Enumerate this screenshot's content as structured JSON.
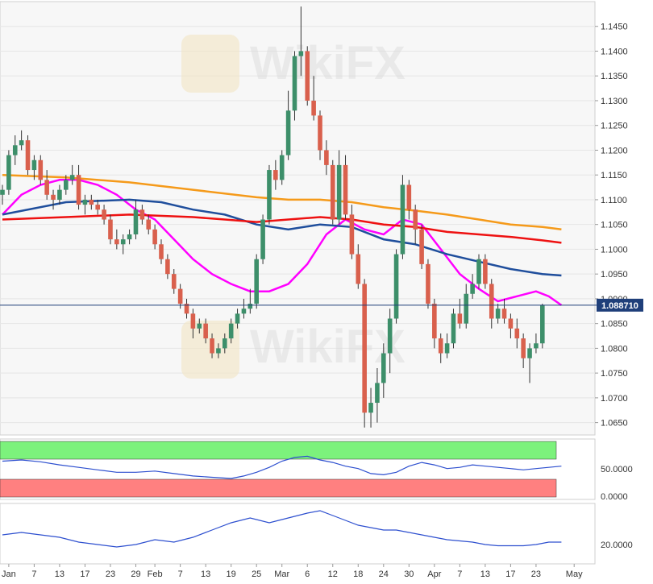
{
  "chart_data": {
    "type": "candlestick",
    "instrument": "EUR/USD",
    "timeframe": "daily",
    "last_price": "1.088710",
    "ylim": [
      1.0625,
      1.15
    ],
    "y_ticks": [
      "1.1450",
      "1.1400",
      "1.1350",
      "1.1300",
      "1.1250",
      "1.1200",
      "1.1150",
      "1.1100",
      "1.1050",
      "1.1000",
      "1.0950",
      "1.0900",
      "1.0850",
      "1.0800",
      "1.0750",
      "1.0700",
      "1.0650"
    ],
    "x_labels": [
      {
        "label": "Jan",
        "bar": 1
      },
      {
        "label": "7",
        "bar": 5
      },
      {
        "label": "13",
        "bar": 9
      },
      {
        "label": "17",
        "bar": 13
      },
      {
        "label": "23",
        "bar": 17
      },
      {
        "label": "29",
        "bar": 21
      },
      {
        "label": "Feb",
        "bar": 24
      },
      {
        "label": "7",
        "bar": 28
      },
      {
        "label": "13",
        "bar": 32
      },
      {
        "label": "19",
        "bar": 36
      },
      {
        "label": "25",
        "bar": 40
      },
      {
        "label": "Mar",
        "bar": 44
      },
      {
        "label": "6",
        "bar": 48
      },
      {
        "label": "12",
        "bar": 52
      },
      {
        "label": "18",
        "bar": 56
      },
      {
        "label": "24",
        "bar": 60
      },
      {
        "label": "30",
        "bar": 64
      },
      {
        "label": "Apr",
        "bar": 68
      },
      {
        "label": "7",
        "bar": 72
      },
      {
        "label": "13",
        "bar": 76
      },
      {
        "label": "17",
        "bar": 80
      },
      {
        "label": "23",
        "bar": 84
      },
      {
        "label": "May",
        "bar": 90
      }
    ],
    "candles": [
      [
        1.111,
        1.113,
        1.109,
        1.112
      ],
      [
        1.112,
        1.12,
        1.111,
        1.119
      ],
      [
        1.119,
        1.123,
        1.117,
        1.121
      ],
      [
        1.121,
        1.124,
        1.12,
        1.122
      ],
      [
        1.122,
        1.123,
        1.115,
        1.116
      ],
      [
        1.116,
        1.119,
        1.114,
        1.118
      ],
      [
        1.118,
        1.119,
        1.113,
        1.114
      ],
      [
        1.114,
        1.116,
        1.11,
        1.111
      ],
      [
        1.111,
        1.112,
        1.108,
        1.11
      ],
      [
        1.11,
        1.113,
        1.109,
        1.112
      ],
      [
        1.112,
        1.115,
        1.111,
        1.114
      ],
      [
        1.114,
        1.117,
        1.113,
        1.115
      ],
      [
        1.115,
        1.117,
        1.108,
        1.109
      ],
      [
        1.109,
        1.111,
        1.107,
        1.11
      ],
      [
        1.11,
        1.111,
        1.108,
        1.109
      ],
      [
        1.109,
        1.11,
        1.107,
        1.108
      ],
      [
        1.108,
        1.109,
        1.105,
        1.106
      ],
      [
        1.106,
        1.107,
        1.101,
        1.102
      ],
      [
        1.102,
        1.104,
        1.1,
        1.101
      ],
      [
        1.101,
        1.103,
        1.099,
        1.102
      ],
      [
        1.102,
        1.104,
        1.101,
        1.103
      ],
      [
        1.103,
        1.11,
        1.102,
        1.108
      ],
      [
        1.108,
        1.109,
        1.105,
        1.106
      ],
      [
        1.106,
        1.107,
        1.103,
        1.104
      ],
      [
        1.104,
        1.105,
        1.1,
        1.101
      ],
      [
        1.101,
        1.102,
        1.097,
        1.098
      ],
      [
        1.098,
        1.099,
        1.094,
        1.095
      ],
      [
        1.095,
        1.096,
        1.091,
        1.092
      ],
      [
        1.092,
        1.093,
        1.088,
        1.089
      ],
      [
        1.089,
        1.09,
        1.086,
        1.087
      ],
      [
        1.087,
        1.088,
        1.082,
        1.084
      ],
      [
        1.084,
        1.086,
        1.083,
        1.085
      ],
      [
        1.085,
        1.086,
        1.081,
        1.082
      ],
      [
        1.082,
        1.083,
        1.078,
        1.079
      ],
      [
        1.079,
        1.081,
        1.078,
        1.08
      ],
      [
        1.08,
        1.083,
        1.079,
        1.082
      ],
      [
        1.082,
        1.086,
        1.081,
        1.085
      ],
      [
        1.085,
        1.088,
        1.084,
        1.087
      ],
      [
        1.087,
        1.09,
        1.086,
        1.088
      ],
      [
        1.088,
        1.092,
        1.087,
        1.089
      ],
      [
        1.089,
        1.099,
        1.088,
        1.098
      ],
      [
        1.098,
        1.107,
        1.097,
        1.106
      ],
      [
        1.106,
        1.117,
        1.105,
        1.116
      ],
      [
        1.116,
        1.118,
        1.112,
        1.114
      ],
      [
        1.114,
        1.12,
        1.113,
        1.119
      ],
      [
        1.119,
        1.132,
        1.118,
        1.128
      ],
      [
        1.128,
        1.14,
        1.126,
        1.139
      ],
      [
        1.139,
        1.149,
        1.135,
        1.14
      ],
      [
        1.14,
        1.141,
        1.129,
        1.13
      ],
      [
        1.13,
        1.135,
        1.126,
        1.127
      ],
      [
        1.127,
        1.128,
        1.118,
        1.12
      ],
      [
        1.12,
        1.122,
        1.115,
        1.117
      ],
      [
        1.117,
        1.118,
        1.105,
        1.106
      ],
      [
        1.106,
        1.12,
        1.105,
        1.117
      ],
      [
        1.117,
        1.119,
        1.106,
        1.107
      ],
      [
        1.107,
        1.109,
        1.098,
        1.099
      ],
      [
        1.099,
        1.101,
        1.092,
        1.093
      ],
      [
        1.093,
        1.094,
        1.064,
        1.067
      ],
      [
        1.067,
        1.072,
        1.064,
        1.069
      ],
      [
        1.069,
        1.076,
        1.065,
        1.073
      ],
      [
        1.073,
        1.081,
        1.07,
        1.079
      ],
      [
        1.079,
        1.088,
        1.075,
        1.086
      ],
      [
        1.086,
        1.1,
        1.085,
        1.099
      ],
      [
        1.099,
        1.115,
        1.098,
        1.113
      ],
      [
        1.113,
        1.114,
        1.106,
        1.108
      ],
      [
        1.108,
        1.109,
        1.101,
        1.104
      ],
      [
        1.104,
        1.105,
        1.096,
        1.097
      ],
      [
        1.097,
        1.098,
        1.088,
        1.089
      ],
      [
        1.089,
        1.09,
        1.08,
        1.082
      ],
      [
        1.082,
        1.083,
        1.077,
        1.079
      ],
      [
        1.079,
        1.083,
        1.078,
        1.081
      ],
      [
        1.081,
        1.088,
        1.08,
        1.087
      ],
      [
        1.087,
        1.09,
        1.084,
        1.085
      ],
      [
        1.085,
        1.093,
        1.084,
        1.091
      ],
      [
        1.091,
        1.095,
        1.09,
        1.093
      ],
      [
        1.093,
        1.099,
        1.092,
        1.098
      ],
      [
        1.098,
        1.099,
        1.092,
        1.093
      ],
      [
        1.093,
        1.094,
        1.084,
        1.086
      ],
      [
        1.086,
        1.089,
        1.085,
        1.088
      ],
      [
        1.088,
        1.09,
        1.085,
        1.086
      ],
      [
        1.086,
        1.087,
        1.082,
        1.084
      ],
      [
        1.084,
        1.086,
        1.08,
        1.082
      ],
      [
        1.082,
        1.083,
        1.076,
        1.078
      ],
      [
        1.078,
        1.081,
        1.073,
        1.08
      ],
      [
        1.08,
        1.083,
        1.079,
        1.081
      ],
      [
        1.081,
        1.089,
        1.08,
        1.0887
      ]
    ],
    "series": [
      {
        "color": "#ff00ff",
        "points": [
          [
            0,
            1.107
          ],
          [
            3,
            1.111
          ],
          [
            6,
            1.113
          ],
          [
            9,
            1.114
          ],
          [
            12,
            1.114
          ],
          [
            15,
            1.113
          ],
          [
            18,
            1.111
          ],
          [
            21,
            1.108
          ],
          [
            24,
            1.106
          ],
          [
            27,
            1.102
          ],
          [
            30,
            1.098
          ],
          [
            33,
            1.095
          ],
          [
            36,
            1.093
          ],
          [
            39,
            1.0915
          ],
          [
            42,
            1.0915
          ],
          [
            45,
            1.093
          ],
          [
            48,
            1.097
          ],
          [
            51,
            1.103
          ],
          [
            54,
            1.106
          ],
          [
            57,
            1.104
          ],
          [
            60,
            1.103
          ],
          [
            63,
            1.106
          ],
          [
            66,
            1.105
          ],
          [
            69,
            1.1
          ],
          [
            72,
            1.095
          ],
          [
            75,
            1.092
          ],
          [
            78,
            1.0895
          ],
          [
            81,
            1.0905
          ],
          [
            84,
            1.0915
          ],
          [
            86,
            1.0905
          ],
          [
            88,
            1.0887
          ]
        ]
      },
      {
        "color": "#1f4e9c",
        "points": [
          [
            0,
            1.107
          ],
          [
            10,
            1.1095
          ],
          [
            20,
            1.11
          ],
          [
            25,
            1.1095
          ],
          [
            30,
            1.108
          ],
          [
            35,
            1.107
          ],
          [
            40,
            1.105
          ],
          [
            45,
            1.104
          ],
          [
            50,
            1.105
          ],
          [
            55,
            1.1045
          ],
          [
            60,
            1.102
          ],
          [
            65,
            1.101
          ],
          [
            70,
            1.099
          ],
          [
            75,
            1.0975
          ],
          [
            80,
            1.096
          ],
          [
            85,
            1.095
          ],
          [
            88,
            1.0947
          ]
        ]
      },
      {
        "color": "#ee1111",
        "points": [
          [
            0,
            1.106
          ],
          [
            10,
            1.1065
          ],
          [
            20,
            1.107
          ],
          [
            30,
            1.1065
          ],
          [
            35,
            1.106
          ],
          [
            40,
            1.1055
          ],
          [
            45,
            1.106
          ],
          [
            50,
            1.1065
          ],
          [
            55,
            1.106
          ],
          [
            60,
            1.105
          ],
          [
            65,
            1.1045
          ],
          [
            70,
            1.1035
          ],
          [
            75,
            1.103
          ],
          [
            80,
            1.1025
          ],
          [
            85,
            1.1018
          ],
          [
            88,
            1.1013
          ]
        ]
      },
      {
        "color": "#f59a1a",
        "points": [
          [
            0,
            1.115
          ],
          [
            10,
            1.1145
          ],
          [
            20,
            1.1135
          ],
          [
            30,
            1.112
          ],
          [
            40,
            1.1105
          ],
          [
            45,
            1.11
          ],
          [
            50,
            1.11
          ],
          [
            55,
            1.1095
          ],
          [
            60,
            1.1085
          ],
          [
            65,
            1.1078
          ],
          [
            70,
            1.107
          ],
          [
            75,
            1.106
          ],
          [
            80,
            1.105
          ],
          [
            85,
            1.1045
          ],
          [
            88,
            1.104
          ]
        ]
      }
    ],
    "oscillator_1": {
      "y_ticks": [
        "50.0000",
        "0.0000"
      ],
      "upper_zone_color": "#7cf27c",
      "lower_zone_color": "#ff8080",
      "line_color": "#2d4fcf",
      "points": [
        [
          0,
          58
        ],
        [
          3,
          60
        ],
        [
          6,
          57
        ],
        [
          9,
          52
        ],
        [
          12,
          48
        ],
        [
          15,
          44
        ],
        [
          18,
          40
        ],
        [
          21,
          40
        ],
        [
          24,
          42
        ],
        [
          27,
          38
        ],
        [
          30,
          34
        ],
        [
          33,
          32
        ],
        [
          36,
          30
        ],
        [
          38,
          34
        ],
        [
          40,
          40
        ],
        [
          42,
          48
        ],
        [
          44,
          58
        ],
        [
          46,
          64
        ],
        [
          48,
          66
        ],
        [
          50,
          60
        ],
        [
          52,
          56
        ],
        [
          54,
          50
        ],
        [
          56,
          46
        ],
        [
          58,
          38
        ],
        [
          60,
          36
        ],
        [
          62,
          40
        ],
        [
          64,
          50
        ],
        [
          66,
          56
        ],
        [
          68,
          52
        ],
        [
          70,
          46
        ],
        [
          72,
          48
        ],
        [
          74,
          52
        ],
        [
          76,
          50
        ],
        [
          78,
          48
        ],
        [
          80,
          46
        ],
        [
          82,
          44
        ],
        [
          84,
          46
        ],
        [
          86,
          48
        ],
        [
          88,
          50
        ]
      ]
    },
    "oscillator_2": {
      "y_ticks": [
        "20.0000"
      ],
      "line_color": "#2d4fcf",
      "points": [
        [
          0,
          24
        ],
        [
          3,
          26
        ],
        [
          6,
          24
        ],
        [
          9,
          22
        ],
        [
          12,
          18
        ],
        [
          15,
          16
        ],
        [
          18,
          14
        ],
        [
          21,
          16
        ],
        [
          24,
          20
        ],
        [
          27,
          18
        ],
        [
          30,
          22
        ],
        [
          33,
          28
        ],
        [
          36,
          34
        ],
        [
          39,
          38
        ],
        [
          42,
          34
        ],
        [
          45,
          38
        ],
        [
          48,
          42
        ],
        [
          50,
          44
        ],
        [
          52,
          40
        ],
        [
          54,
          36
        ],
        [
          56,
          32
        ],
        [
          58,
          30
        ],
        [
          60,
          28
        ],
        [
          62,
          28
        ],
        [
          64,
          26
        ],
        [
          66,
          24
        ],
        [
          68,
          22
        ],
        [
          70,
          20
        ],
        [
          72,
          19
        ],
        [
          74,
          18
        ],
        [
          76,
          16
        ],
        [
          78,
          15
        ],
        [
          80,
          15
        ],
        [
          82,
          15
        ],
        [
          84,
          16
        ],
        [
          86,
          18
        ],
        [
          88,
          18
        ]
      ]
    },
    "watermark": "WikiFX"
  }
}
